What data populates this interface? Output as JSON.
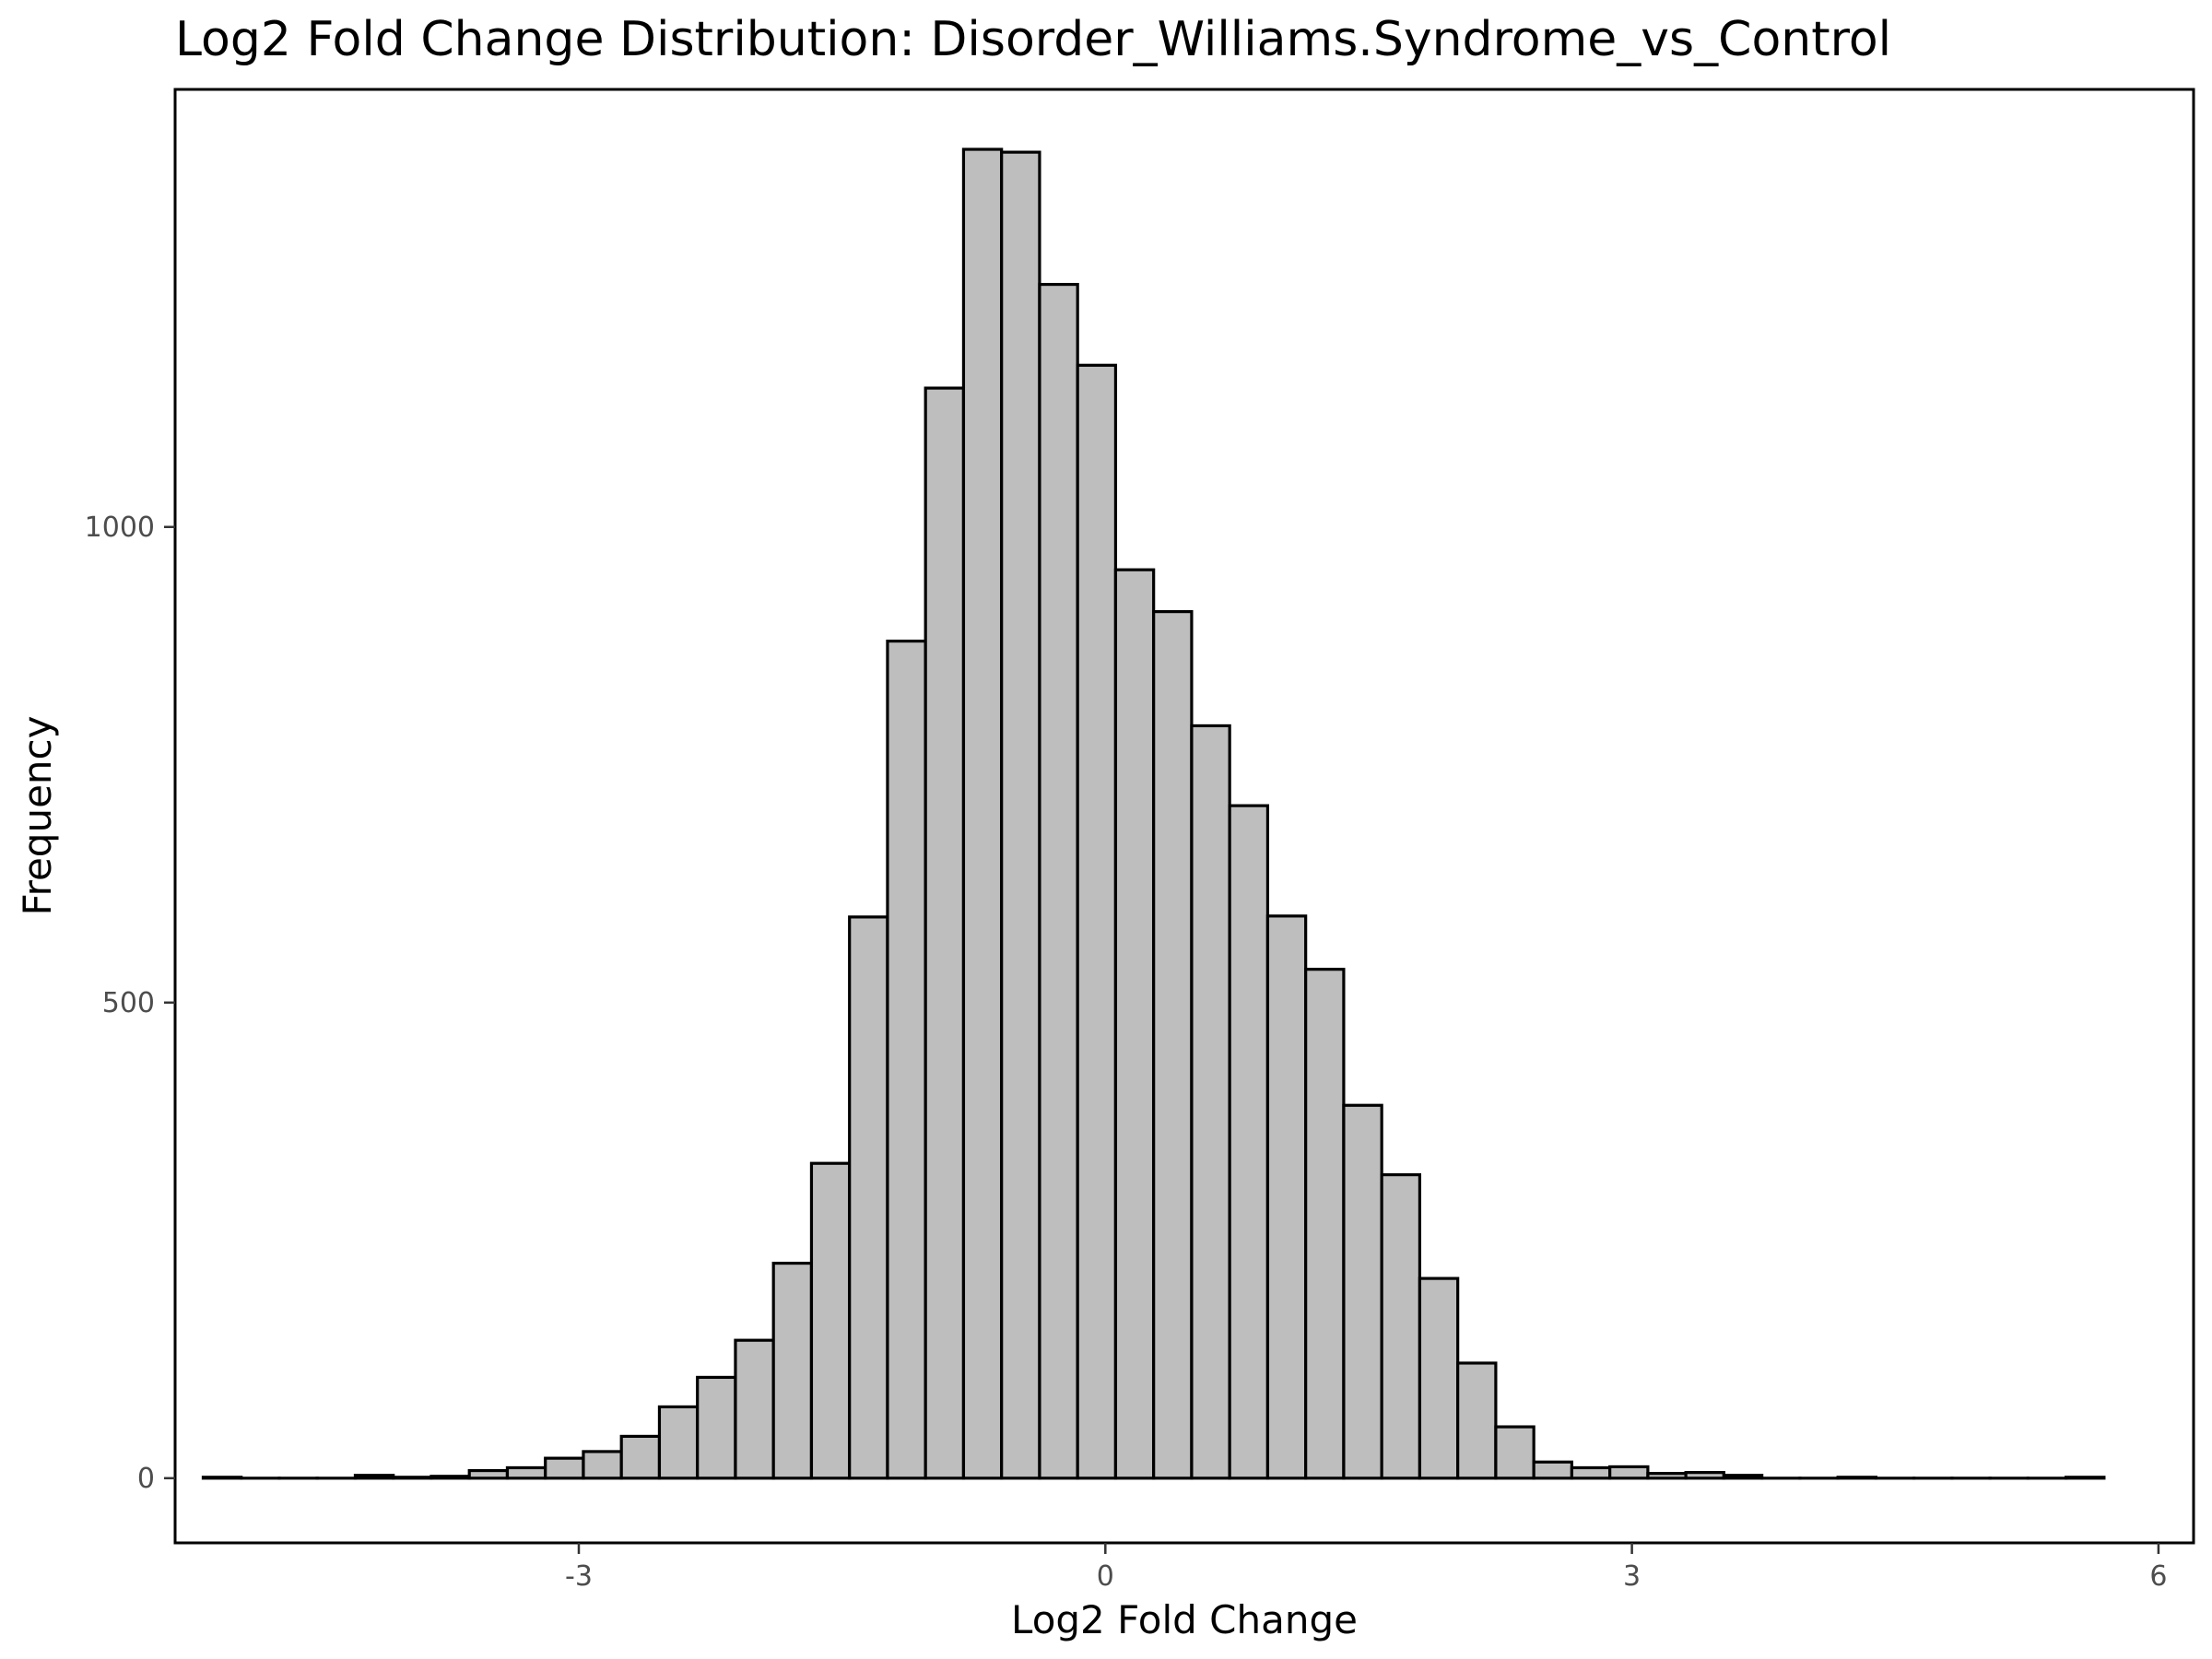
{
  "chart_data": {
    "type": "bar",
    "title": "Log2 Fold Change Distribution: Disorder_Williams.Syndrome_vs_Control",
    "xlabel": "Log2 Fold Change",
    "ylabel": "Frequency",
    "xlim": [
      -5.3,
      6.2
    ],
    "ylim": [
      -68,
      1460
    ],
    "xticks": [
      -3,
      0,
      3,
      6
    ],
    "xtick_labels": [
      "-3",
      "0",
      "3",
      "6"
    ],
    "yticks": [
      0,
      500,
      1000
    ],
    "ytick_labels": [
      "0",
      "500",
      "1000"
    ],
    "bin_width": 0.2166,
    "bin_start": -5.14,
    "values": [
      1,
      0,
      0,
      0,
      3,
      1,
      2,
      8,
      11,
      21,
      28,
      44,
      75,
      106,
      145,
      226,
      331,
      590,
      880,
      1146,
      1397,
      1394,
      1255,
      1170,
      955,
      911,
      791,
      707,
      591,
      535,
      392,
      319,
      210,
      121,
      54,
      17,
      11,
      12,
      5,
      6,
      3,
      0,
      0,
      1,
      0,
      0,
      0,
      0,
      0,
      1
    ],
    "grid": false,
    "legend": "none",
    "colors": {
      "bar_fill": "#bebebe",
      "bar_stroke": "#000000",
      "tick_text": "#4d4d4d"
    }
  }
}
